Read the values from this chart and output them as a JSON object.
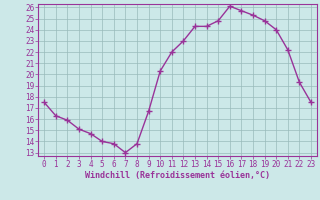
{
  "x": [
    0,
    1,
    2,
    3,
    4,
    5,
    6,
    7,
    8,
    9,
    10,
    11,
    12,
    13,
    14,
    15,
    16,
    17,
    18,
    19,
    20,
    21,
    22,
    23
  ],
  "y": [
    17.5,
    16.3,
    15.9,
    15.1,
    14.7,
    14.0,
    13.8,
    13.0,
    13.8,
    16.7,
    20.3,
    22.0,
    23.0,
    24.3,
    24.3,
    24.8,
    26.1,
    25.7,
    25.3,
    24.8,
    24.0,
    22.2,
    19.3,
    17.5
  ],
  "line_color": "#993399",
  "marker": "+",
  "marker_size": 4,
  "bg_color": "#cce8e8",
  "grid_color": "#99bbbb",
  "xlabel": "Windchill (Refroidissement éolien,°C)",
  "xlabel_color": "#993399",
  "tick_color": "#993399",
  "spine_color": "#993399",
  "ylim": [
    13,
    26
  ],
  "xlim": [
    -0.5,
    23.5
  ],
  "yticks": [
    13,
    14,
    15,
    16,
    17,
    18,
    19,
    20,
    21,
    22,
    23,
    24,
    25,
    26
  ],
  "xticks": [
    0,
    1,
    2,
    3,
    4,
    5,
    6,
    7,
    8,
    9,
    10,
    11,
    12,
    13,
    14,
    15,
    16,
    17,
    18,
    19,
    20,
    21,
    22,
    23
  ],
  "line_width": 1.0,
  "tick_fontsize": 5.5,
  "xlabel_fontsize": 6.0,
  "markeredgewidth": 1.0
}
